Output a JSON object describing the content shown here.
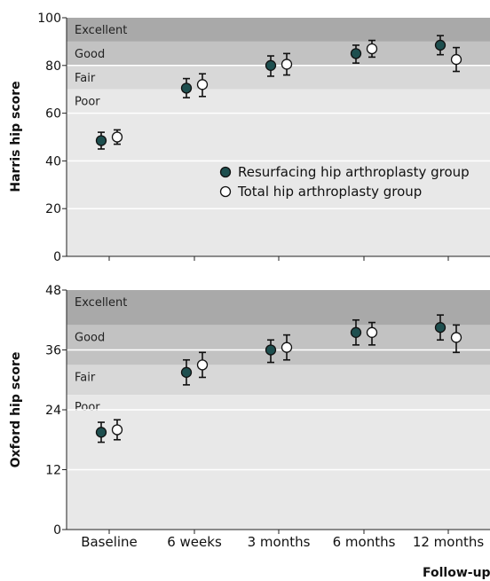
{
  "chart_data": [
    {
      "type": "scatter",
      "ylabel": "Harris hip score",
      "ylim": [
        0,
        100
      ],
      "yticks": [
        0,
        20,
        40,
        60,
        80,
        100
      ],
      "categories": [
        "Baseline",
        "6 weeks",
        "3 months",
        "6 months",
        "12 months"
      ],
      "bands": [
        {
          "label": "Excellent",
          "from": 90,
          "to": 100,
          "color": "#a9a9a9"
        },
        {
          "label": "Good",
          "from": 80,
          "to": 90,
          "color": "#c2c2c2"
        },
        {
          "label": "Fair",
          "from": 70,
          "to": 80,
          "color": "#d8d8d8"
        },
        {
          "label": "Poor",
          "from": 0,
          "to": 70,
          "color": "#e8e8e8"
        }
      ],
      "series": [
        {
          "name": "Resurfacing hip arthroplasty group",
          "marker": "filled",
          "color": "#1e4f4f",
          "values": [
            48.5,
            70.5,
            80,
            85,
            88.5
          ],
          "errors": [
            [
              45,
              52
            ],
            [
              66.5,
              74.5
            ],
            [
              75.5,
              84
            ],
            [
              81,
              88.5
            ],
            [
              84.5,
              92.5
            ]
          ]
        },
        {
          "name": "Total hip arthroplasty group",
          "marker": "open",
          "color": "#ffffff",
          "values": [
            50,
            72,
            80.5,
            87,
            82.5
          ],
          "errors": [
            [
              47,
              53
            ],
            [
              67,
              76.5
            ],
            [
              76,
              85
            ],
            [
              83.5,
              90.5
            ],
            [
              77.5,
              87.5
            ]
          ]
        }
      ],
      "legend": "inside-right"
    },
    {
      "type": "scatter",
      "ylabel": "Oxford hip score",
      "xlabel": "Follow-up",
      "ylim": [
        0,
        48
      ],
      "yticks": [
        0,
        12,
        24,
        36,
        48
      ],
      "categories": [
        "Baseline",
        "6 weeks",
        "3 months",
        "6 months",
        "12 months"
      ],
      "bands": [
        {
          "label": "Excellent",
          "from": 41,
          "to": 48,
          "color": "#a9a9a9"
        },
        {
          "label": "Good",
          "from": 33,
          "to": 41,
          "color": "#c2c2c2"
        },
        {
          "label": "Fair",
          "from": 27,
          "to": 33,
          "color": "#d8d8d8"
        },
        {
          "label": "Poor",
          "from": 0,
          "to": 27,
          "color": "#e8e8e8"
        }
      ],
      "series": [
        {
          "name": "Resurfacing hip arthroplasty group",
          "marker": "filled",
          "color": "#1e4f4f",
          "values": [
            19.5,
            31.5,
            36,
            39.5,
            40.5
          ],
          "errors": [
            [
              17.5,
              21.5
            ],
            [
              29,
              34
            ],
            [
              33.5,
              38
            ],
            [
              37,
              42
            ],
            [
              38,
              43
            ]
          ]
        },
        {
          "name": "Total hip arthroplasty group",
          "marker": "open",
          "color": "#ffffff",
          "values": [
            20,
            33,
            36.5,
            39.5,
            38.5
          ],
          "errors": [
            [
              18,
              22
            ],
            [
              30.5,
              35.5
            ],
            [
              34,
              39
            ],
            [
              37,
              41.5
            ],
            [
              35.5,
              41
            ]
          ]
        }
      ]
    }
  ]
}
